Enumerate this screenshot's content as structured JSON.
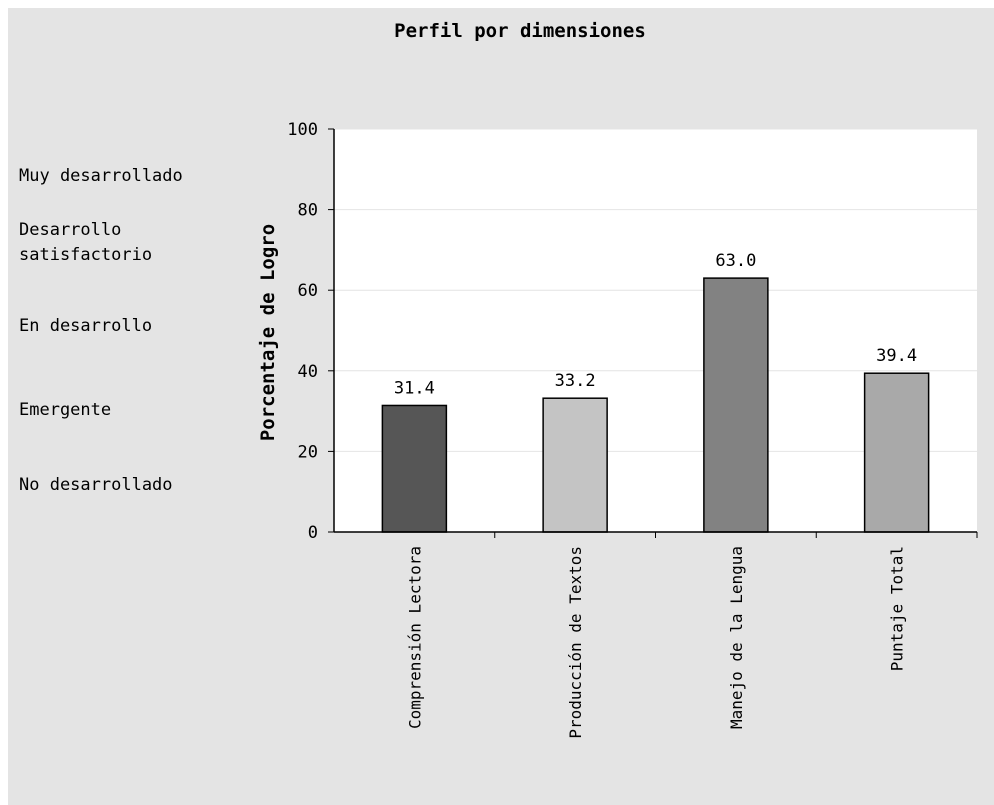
{
  "chart_data": {
    "type": "bar",
    "title": "Perfil por dimensiones",
    "xlabel": "",
    "ylabel": "Porcentaje de Logro",
    "ylim": [
      0,
      100
    ],
    "yticks": [
      "0",
      "20",
      "40",
      "60",
      "80",
      "100"
    ],
    "grid": true,
    "categories": [
      "Comprensión Lectora",
      "Producción de Textos",
      "Manejo de la Lengua",
      "Puntaje Total"
    ],
    "values": [
      31.4,
      33.2,
      63.0,
      39.4
    ],
    "value_labels": [
      "31.4",
      "33.2",
      "63.0",
      "39.4"
    ],
    "bar_colors": [
      "#565656",
      "#c4c4c4",
      "#828282",
      "#a9a9a9"
    ]
  },
  "levels": [
    "Muy desarrollado",
    "Desarrollo satisfactorio",
    "En desarrollo",
    "Emergente",
    "No desarrollado"
  ],
  "colors": {
    "background": "#e4e4e4",
    "plot_area": "#ffffff",
    "gridline": "#e4e4e4",
    "text": "#000000"
  }
}
